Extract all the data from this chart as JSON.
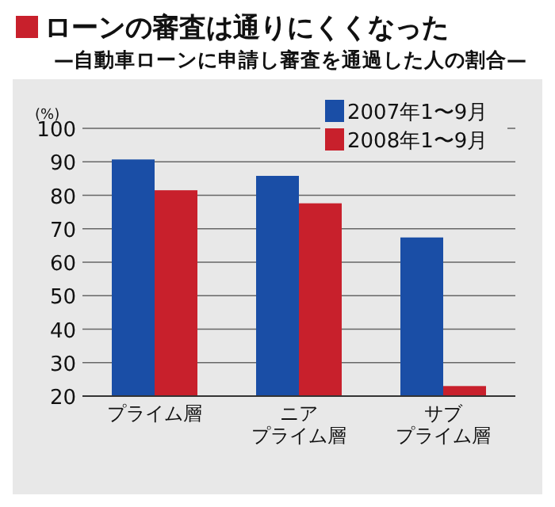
{
  "chart_data": {
    "type": "bar",
    "title": "ローンの審査は通りにくくなった",
    "subtitle": "—自動車ローンに申請し審査を通過した人の割合—",
    "ylabel": "(%)",
    "categories": [
      "プライム層",
      "ニアプライム層",
      "サブプライム層"
    ],
    "series": [
      {
        "name": "2007年1〜9月",
        "color": "#1a4ea6",
        "values": [
          90.7,
          85.8,
          67.4
        ]
      },
      {
        "name": "2008年1〜9月",
        "color": "#c8202c",
        "values": [
          81.5,
          77.6,
          23
        ]
      }
    ],
    "ylim": [
      20,
      100
    ],
    "yticks": [
      20,
      30,
      40,
      50,
      60,
      70,
      80,
      90,
      100
    ],
    "grid": "y",
    "legend": "top right"
  }
}
